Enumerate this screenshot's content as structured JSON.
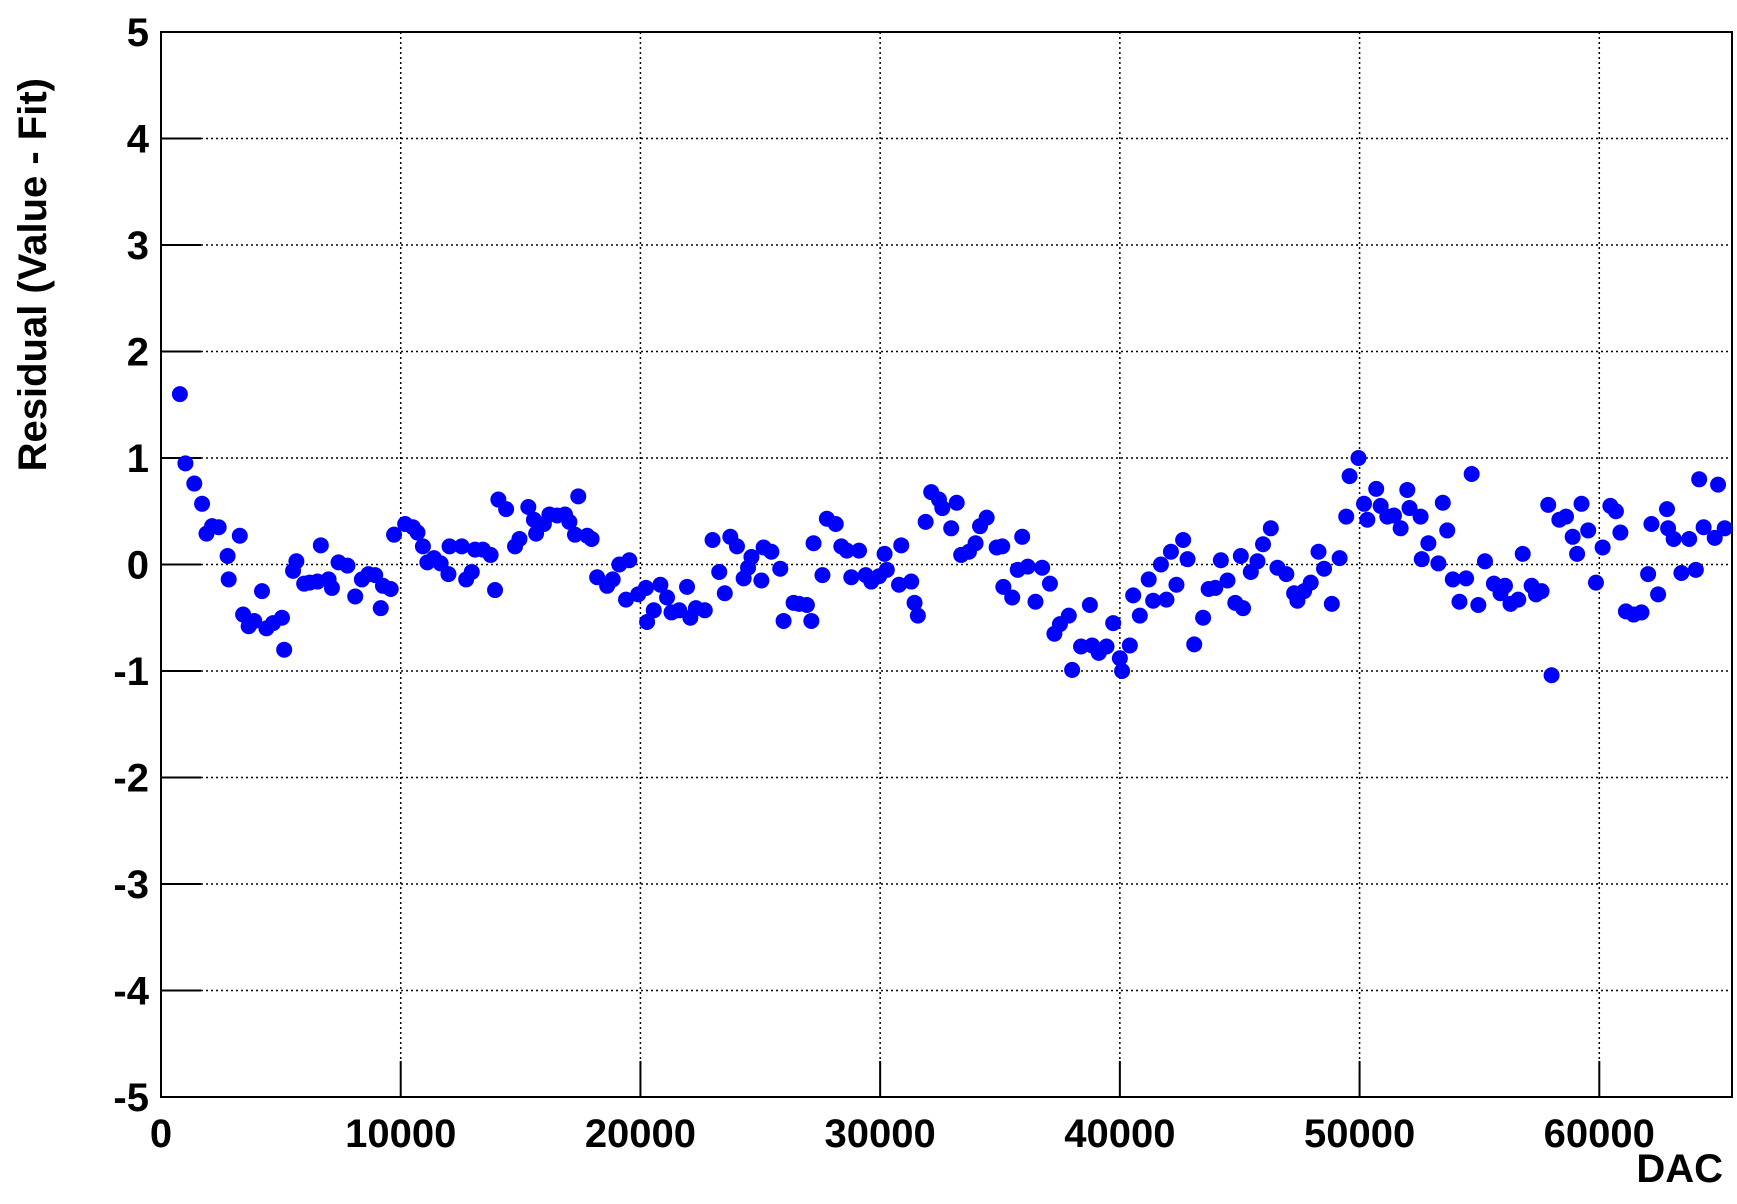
{
  "chart_data": {
    "type": "scatter",
    "xlabel": "DAC",
    "ylabel": "Residual (Value - Fit)",
    "xlim": [
      0,
      65536
    ],
    "ylim": [
      -5,
      5
    ],
    "xticks": [
      0,
      10000,
      20000,
      30000,
      40000,
      50000,
      60000
    ],
    "yticks": [
      -5,
      -4,
      -3,
      -2,
      -1,
      0,
      1,
      2,
      3,
      4,
      5
    ],
    "grid": true,
    "color": "#0000ff",
    "x": [
      787,
      1019,
      1389,
      1713,
      1898,
      2130,
      2407,
      2778,
      2824,
      3287,
      3426,
      3657,
      3889,
      4213,
      4398,
      4676,
      5046,
      5139,
      5509,
      5648,
      5972,
      6204,
      6528,
      6667,
      6991,
      7130,
      7407,
      7778,
      8102,
      8380,
      8657,
      8935,
      9167,
      9259,
      9583,
      9722,
      10185,
      10509,
      10700,
      10926,
      11111,
      11389,
      11667,
      11991,
      12037,
      12546,
      12731,
      12963,
      13102,
      13426,
      13750,
      13935,
      14074,
      14398,
      14769,
      14954,
      15324,
      15556,
      15648,
      15972,
      16204,
      16528,
      16852,
      17037,
      17269,
      17407,
      17778,
      17963,
      18194,
      18611,
      18843,
      19120,
      19398,
      19537,
      19907,
      20231,
      20278,
      20556,
      20833,
      21111,
      21296,
      21620,
      21944,
      22083,
      22315,
      22685,
      23009,
      23287,
      23519,
      23750,
      24028,
      24306,
      24491,
      24630,
      25046,
      25139,
      25463,
      25833,
      25972,
      26389,
      26620,
      26944,
      27130,
      27222,
      27593,
      27778,
      28148,
      28380,
      28611,
      28796,
      29120,
      29398,
      29630,
      29954,
      30185,
      30278,
      30787,
      30880,
      31296,
      31435,
      31574,
      31898,
      32130,
      32454,
      32593,
      32963,
      33194,
      33380,
      33704,
      33981,
      34167,
      34444,
      34861,
      35093,
      35139,
      35509,
      35741,
      35926,
      36157,
      36481,
      36759,
      37083,
      37269,
      37500,
      37870,
      38009,
      38380,
      38750,
      38843,
      39120,
      39444,
      39722,
      40000,
      40093,
      40417,
      40556,
      40833,
      41204,
      41389,
      41713,
      41944,
      42130,
      42361,
      42639,
      42824,
      43102,
      43472,
      43704,
      43981,
      44213,
      44491,
      44815,
      45046,
      45139,
      45463,
      45741,
      45972,
      46296,
      46574,
      46944,
      47269,
      47407,
      47685,
      47963,
      48287,
      48519,
      48843,
      49167,
      49444,
      49583,
      49954,
      50185,
      50324,
      50694,
      50880,
      51157,
      51435,
      51713,
      51991,
      52083,
      52546,
      52593,
      52870,
      53287,
      53472,
      53657,
      53889,
      54167,
      54444,
      54676,
      54954,
      55231,
      55602,
      55880,
      56065,
      56296,
      56620,
      56806,
      57176,
      57361,
      57593,
      57870,
      58009,
      58333,
      58611,
      58889,
      59074,
      59259,
      59537,
      59861,
      60139,
      60463,
      60694,
      60880,
      61111,
      61435,
      61759,
      62037,
      62176,
      62454,
      62824,
      62870,
      63102,
      63426,
      63750,
      64028,
      64167,
      64352,
      64815,
      64954,
      65231
    ],
    "values": [
      1.6,
      0.95,
      0.76,
      0.57,
      0.29,
      0.36,
      0.35,
      0.08,
      -0.14,
      0.27,
      -0.47,
      -0.58,
      -0.53,
      -0.25,
      -0.6,
      -0.55,
      -0.5,
      -0.8,
      -0.06,
      0.03,
      -0.18,
      -0.17,
      -0.16,
      0.18,
      -0.14,
      -0.22,
      0.02,
      -0.01,
      -0.3,
      -0.14,
      -0.09,
      -0.1,
      -0.41,
      -0.2,
      -0.23,
      0.28,
      0.38,
      0.35,
      0.3,
      0.17,
      0.02,
      0.06,
      0.01,
      -0.09,
      0.17,
      0.17,
      -0.14,
      -0.07,
      0.14,
      0.14,
      0.09,
      -0.24,
      0.61,
      0.52,
      0.17,
      0.24,
      0.54,
      0.42,
      0.29,
      0.38,
      0.47,
      0.46,
      0.47,
      0.4,
      0.28,
      0.64,
      0.27,
      0.24,
      -0.12,
      -0.2,
      -0.14,
      0.0,
      -0.33,
      0.04,
      -0.28,
      -0.22,
      -0.54,
      -0.43,
      -0.19,
      -0.31,
      -0.45,
      -0.43,
      -0.21,
      -0.5,
      -0.41,
      -0.43,
      0.23,
      -0.07,
      -0.27,
      0.26,
      0.17,
      -0.13,
      -0.03,
      0.07,
      -0.15,
      0.16,
      0.12,
      -0.04,
      -0.53,
      -0.36,
      -0.37,
      -0.38,
      -0.53,
      0.2,
      -0.1,
      0.43,
      0.38,
      0.17,
      0.13,
      -0.12,
      0.13,
      -0.1,
      -0.16,
      -0.11,
      0.1,
      -0.05,
      -0.19,
      0.18,
      -0.16,
      -0.36,
      -0.48,
      0.4,
      0.68,
      0.61,
      0.53,
      0.34,
      0.58,
      0.09,
      0.12,
      0.2,
      0.36,
      0.44,
      0.16,
      0.17,
      -0.21,
      -0.31,
      -0.05,
      0.26,
      -0.02,
      -0.35,
      -0.03,
      -0.18,
      -0.65,
      -0.56,
      -0.48,
      -0.99,
      -0.77,
      -0.38,
      -0.76,
      -0.83,
      -0.77,
      -0.55,
      -0.88,
      -1.0,
      -0.76,
      -0.29,
      -0.48,
      -0.14,
      -0.34,
      0.0,
      -0.33,
      0.12,
      -0.19,
      0.23,
      0.05,
      -0.75,
      -0.5,
      -0.23,
      -0.22,
      0.04,
      -0.15,
      -0.36,
      0.08,
      -0.41,
      -0.07,
      0.03,
      0.19,
      0.34,
      -0.03,
      -0.09,
      -0.27,
      -0.34,
      -0.25,
      -0.17,
      0.12,
      -0.04,
      -0.37,
      0.06,
      0.45,
      0.83,
      1.0,
      0.57,
      0.42,
      0.71,
      0.55,
      0.45,
      0.46,
      0.34,
      0.7,
      0.53,
      0.45,
      0.05,
      0.2,
      0.01,
      0.58,
      0.32,
      -0.14,
      -0.35,
      -0.13,
      0.85,
      -0.38,
      0.03,
      -0.18,
      -0.27,
      -0.2,
      -0.37,
      -0.33,
      0.1,
      -0.2,
      -0.28,
      -0.25,
      0.56,
      -1.04,
      0.42,
      0.45,
      0.26,
      0.1,
      0.57,
      0.32,
      -0.17,
      0.16,
      0.55,
      0.5,
      0.3,
      -0.44,
      -0.47,
      -0.45,
      -0.09,
      0.38,
      -0.28,
      0.52,
      0.34,
      0.24,
      -0.08,
      0.24,
      -0.05,
      0.8,
      0.35,
      0.25,
      0.75,
      0.34
    ]
  }
}
